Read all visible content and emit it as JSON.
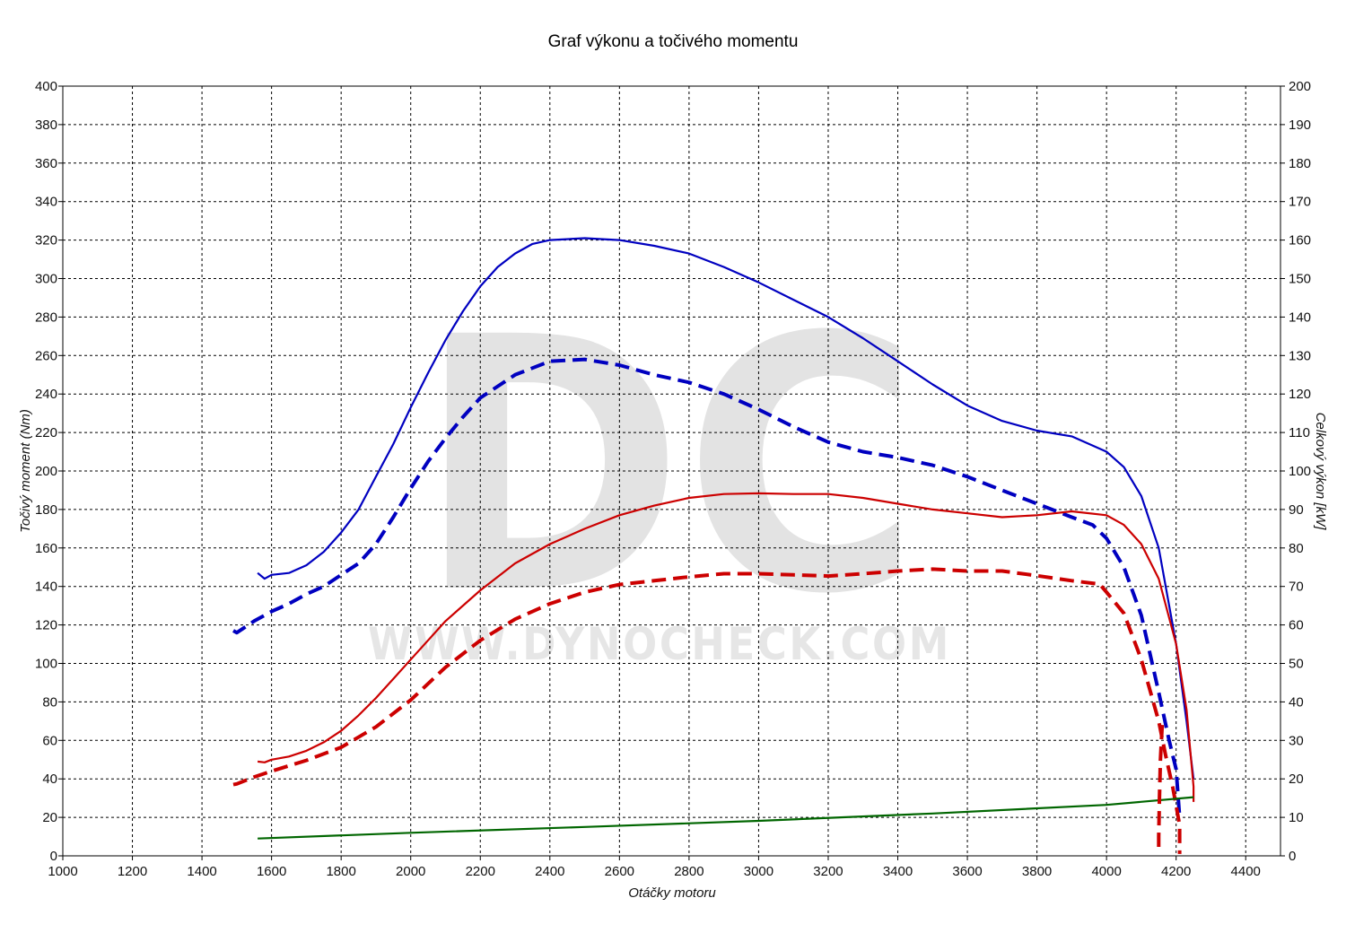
{
  "chart_data": {
    "type": "line",
    "title": "Graf výkonu a točivého momentu",
    "xlabel": "Otáčky motoru",
    "ylabel_left": "Točivý moment (Nm)",
    "ylabel_right": "Celkový výkon [kW]",
    "xlim": [
      1000,
      4500
    ],
    "ylim_left": [
      0,
      400
    ],
    "ylim_right": [
      0,
      200
    ],
    "x_ticks": [
      1000,
      1200,
      1400,
      1600,
      1800,
      2000,
      2200,
      2400,
      2600,
      2800,
      3000,
      3200,
      3400,
      3600,
      3800,
      4000,
      4200,
      4400
    ],
    "y_ticks_left": [
      0,
      20,
      40,
      60,
      80,
      100,
      120,
      140,
      160,
      180,
      200,
      220,
      240,
      260,
      280,
      300,
      320,
      340,
      360,
      380,
      400
    ],
    "y_ticks_right": [
      0,
      10,
      20,
      30,
      40,
      50,
      60,
      70,
      80,
      90,
      100,
      110,
      120,
      130,
      140,
      150,
      160,
      170,
      180,
      190,
      200
    ],
    "grid": true,
    "legend": "none",
    "watermark": {
      "logo": "DC",
      "url": "WWW.DYNOCHECK.COM"
    },
    "series": [
      {
        "axis": "left",
        "color": "#0000c0",
        "dash": "solid",
        "points": [
          [
            1560,
            147
          ],
          [
            1580,
            144
          ],
          [
            1600,
            146
          ],
          [
            1650,
            147
          ],
          [
            1700,
            151
          ],
          [
            1750,
            158
          ],
          [
            1800,
            168
          ],
          [
            1850,
            180
          ],
          [
            1900,
            197
          ],
          [
            1950,
            214
          ],
          [
            2000,
            233
          ],
          [
            2050,
            251
          ],
          [
            2100,
            268
          ],
          [
            2150,
            283
          ],
          [
            2200,
            296
          ],
          [
            2250,
            306
          ],
          [
            2300,
            313
          ],
          [
            2350,
            318
          ],
          [
            2400,
            320
          ],
          [
            2500,
            321
          ],
          [
            2600,
            320
          ],
          [
            2700,
            317
          ],
          [
            2800,
            313
          ],
          [
            2900,
            306
          ],
          [
            3000,
            298
          ],
          [
            3100,
            289
          ],
          [
            3200,
            280
          ],
          [
            3300,
            269
          ],
          [
            3400,
            257
          ],
          [
            3500,
            245
          ],
          [
            3600,
            234
          ],
          [
            3700,
            226
          ],
          [
            3800,
            221
          ],
          [
            3900,
            218
          ],
          [
            4000,
            210
          ],
          [
            4050,
            202
          ],
          [
            4100,
            187
          ],
          [
            4150,
            160
          ],
          [
            4200,
            110
          ],
          [
            4230,
            70
          ],
          [
            4250,
            40
          ]
        ]
      },
      {
        "axis": "left",
        "color": "#0000c0",
        "dash": "dashed",
        "points": [
          [
            1490,
            117
          ],
          [
            1500,
            116
          ],
          [
            1550,
            122
          ],
          [
            1600,
            127
          ],
          [
            1650,
            131
          ],
          [
            1700,
            136
          ],
          [
            1750,
            140
          ],
          [
            1800,
            146
          ],
          [
            1850,
            152
          ],
          [
            1900,
            162
          ],
          [
            1950,
            176
          ],
          [
            2000,
            191
          ],
          [
            2050,
            205
          ],
          [
            2100,
            217
          ],
          [
            2150,
            228
          ],
          [
            2200,
            238
          ],
          [
            2300,
            250
          ],
          [
            2400,
            257
          ],
          [
            2500,
            258
          ],
          [
            2600,
            255
          ],
          [
            2700,
            250
          ],
          [
            2800,
            246
          ],
          [
            2900,
            240
          ],
          [
            3000,
            232
          ],
          [
            3100,
            223
          ],
          [
            3200,
            215
          ],
          [
            3300,
            210
          ],
          [
            3400,
            207
          ],
          [
            3500,
            203
          ],
          [
            3600,
            197
          ],
          [
            3700,
            190
          ],
          [
            3800,
            183
          ],
          [
            3900,
            176
          ],
          [
            3960,
            172
          ],
          [
            4000,
            165
          ],
          [
            4050,
            150
          ],
          [
            4100,
            125
          ],
          [
            4150,
            85
          ],
          [
            4180,
            60
          ],
          [
            4200,
            45
          ],
          [
            4210,
            20
          ]
        ]
      },
      {
        "axis": "right",
        "color": "#cc0000",
        "dash": "solid",
        "points": [
          [
            1560,
            24.5
          ],
          [
            1580,
            24.3
          ],
          [
            1600,
            25
          ],
          [
            1650,
            25.8
          ],
          [
            1700,
            27.3
          ],
          [
            1750,
            29.5
          ],
          [
            1800,
            32.5
          ],
          [
            1850,
            36.5
          ],
          [
            1900,
            41
          ],
          [
            1950,
            46
          ],
          [
            2000,
            51
          ],
          [
            2100,
            61
          ],
          [
            2200,
            69
          ],
          [
            2300,
            76
          ],
          [
            2400,
            81
          ],
          [
            2500,
            85
          ],
          [
            2600,
            88.5
          ],
          [
            2700,
            91
          ],
          [
            2800,
            93
          ],
          [
            2900,
            94
          ],
          [
            3000,
            94.2
          ],
          [
            3100,
            94
          ],
          [
            3200,
            94
          ],
          [
            3300,
            93
          ],
          [
            3400,
            91.5
          ],
          [
            3500,
            90
          ],
          [
            3600,
            89
          ],
          [
            3700,
            88
          ],
          [
            3800,
            88.5
          ],
          [
            3900,
            89.5
          ],
          [
            4000,
            88.5
          ],
          [
            4050,
            86
          ],
          [
            4100,
            81
          ],
          [
            4150,
            72
          ],
          [
            4200,
            55
          ],
          [
            4230,
            38
          ],
          [
            4250,
            18
          ],
          [
            4250,
            14
          ]
        ]
      },
      {
        "axis": "right",
        "color": "#cc0000",
        "dash": "dashed",
        "points": [
          [
            1490,
            18.5
          ],
          [
            1500,
            18.7
          ],
          [
            1550,
            20.5
          ],
          [
            1600,
            22
          ],
          [
            1700,
            24.8
          ],
          [
            1800,
            28.2
          ],
          [
            1900,
            33.5
          ],
          [
            2000,
            40.5
          ],
          [
            2100,
            49
          ],
          [
            2200,
            56
          ],
          [
            2300,
            61.5
          ],
          [
            2400,
            65.5
          ],
          [
            2500,
            68.5
          ],
          [
            2600,
            70.5
          ],
          [
            2700,
            71.5
          ],
          [
            2800,
            72.5
          ],
          [
            2900,
            73.3
          ],
          [
            3000,
            73.3
          ],
          [
            3100,
            73
          ],
          [
            3200,
            72.7
          ],
          [
            3300,
            73.3
          ],
          [
            3400,
            74
          ],
          [
            3500,
            74.5
          ],
          [
            3600,
            74
          ],
          [
            3700,
            74
          ],
          [
            3800,
            72.8
          ],
          [
            3900,
            71.5
          ],
          [
            3980,
            70.6
          ],
          [
            4000,
            68.5
          ],
          [
            4050,
            63
          ],
          [
            4100,
            51
          ],
          [
            4150,
            35
          ],
          [
            4170,
            26
          ],
          [
            4190,
            18
          ],
          [
            4210,
            8
          ],
          [
            4210,
            0.5
          ]
        ]
      },
      {
        "axis": "left",
        "color": "#006600",
        "dash": "solid",
        "points": [
          [
            1560,
            9
          ],
          [
            2000,
            12
          ],
          [
            2500,
            15
          ],
          [
            3000,
            18.2
          ],
          [
            3500,
            22
          ],
          [
            4000,
            26.5
          ],
          [
            4250,
            30.5
          ]
        ]
      },
      {
        "axis": "right",
        "color": "#cc0000",
        "dash": "dashed",
        "points": [
          [
            4160,
            34
          ],
          [
            4155,
            25
          ],
          [
            4152,
            15
          ],
          [
            4150,
            5
          ],
          [
            4150,
            0.5
          ]
        ]
      }
    ]
  }
}
